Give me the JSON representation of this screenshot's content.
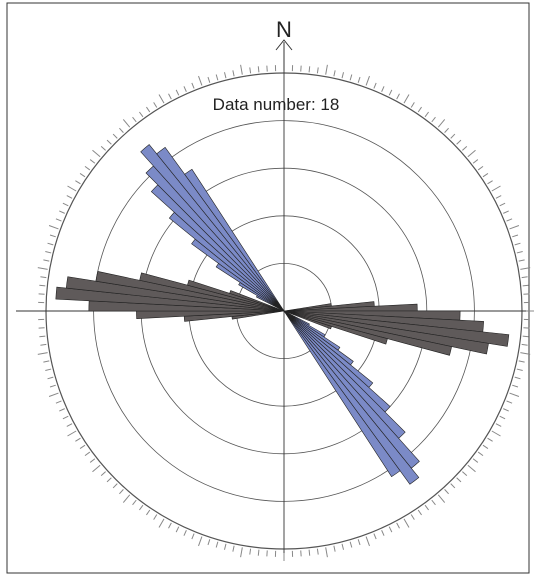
{
  "chart_data": {
    "type": "rose",
    "north_label": "N",
    "annotation": "Data number: 18",
    "grid": true,
    "rings": 5,
    "bin_width_deg": 3,
    "series": [
      {
        "color": "#7b8ac7",
        "bins": [
          {
            "az": 118.5,
            "r": 0.12
          },
          {
            "az": 121.5,
            "r": 0.2
          },
          {
            "az": 124.5,
            "r": 0.28
          },
          {
            "az": 127.5,
            "r": 0.36
          },
          {
            "az": 130.5,
            "r": 0.48
          },
          {
            "az": 133.5,
            "r": 0.6
          },
          {
            "az": 136.5,
            "r": 0.72
          },
          {
            "az": 139.5,
            "r": 0.85
          },
          {
            "az": 142.5,
            "r": 0.9
          },
          {
            "az": 145.5,
            "r": 0.83
          },
          {
            "az": 298.5,
            "r": 0.13
          },
          {
            "az": 301.5,
            "r": 0.22
          },
          {
            "az": 304.5,
            "r": 0.34
          },
          {
            "az": 307.5,
            "r": 0.48
          },
          {
            "az": 310.5,
            "r": 0.62
          },
          {
            "az": 313.5,
            "r": 0.75
          },
          {
            "az": 316.5,
            "r": 0.82
          },
          {
            "az": 319.5,
            "r": 0.9
          },
          {
            "az": 322.5,
            "r": 0.85
          },
          {
            "az": 325.5,
            "r": 0.71
          }
        ]
      },
      {
        "color": "#5f5a5a",
        "bins": [
          {
            "az": 82.5,
            "r": 0.2
          },
          {
            "az": 85.5,
            "r": 0.38
          },
          {
            "az": 88.5,
            "r": 0.56
          },
          {
            "az": 91.5,
            "r": 0.74
          },
          {
            "az": 94.5,
            "r": 0.84
          },
          {
            "az": 97.5,
            "r": 0.95
          },
          {
            "az": 100.5,
            "r": 0.87
          },
          {
            "az": 103.5,
            "r": 0.72
          },
          {
            "az": 106.5,
            "r": 0.45
          },
          {
            "az": 109.5,
            "r": 0.21
          },
          {
            "az": 262.5,
            "r": 0.22
          },
          {
            "az": 265.5,
            "r": 0.42
          },
          {
            "az": 268.5,
            "r": 0.62
          },
          {
            "az": 271.5,
            "r": 0.82
          },
          {
            "az": 274.5,
            "r": 0.96
          },
          {
            "az": 277.5,
            "r": 0.92
          },
          {
            "az": 280.5,
            "r": 0.8
          },
          {
            "az": 283.5,
            "r": 0.62
          },
          {
            "az": 286.5,
            "r": 0.42
          },
          {
            "az": 289.5,
            "r": 0.24
          }
        ]
      }
    ]
  }
}
